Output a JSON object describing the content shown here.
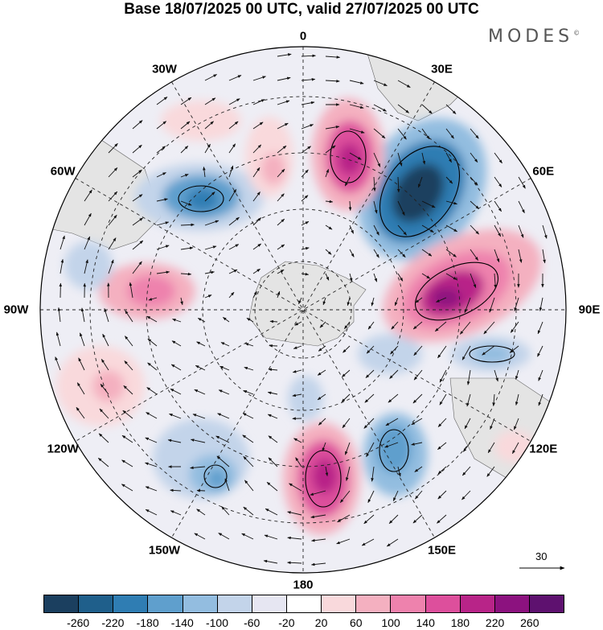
{
  "title": "Base 18/07/2025 00 UTC, valid 27/07/2025 00 UTC",
  "brand": "MODES",
  "brand_mark": "©",
  "longitude_labels": [
    {
      "text": "0",
      "lon": 0
    },
    {
      "text": "30E",
      "lon": 30
    },
    {
      "text": "60E",
      "lon": 60
    },
    {
      "text": "90E",
      "lon": 90
    },
    {
      "text": "120E",
      "lon": 120
    },
    {
      "text": "150E",
      "lon": 150
    },
    {
      "text": "180",
      "lon": 180
    },
    {
      "text": "150W",
      "lon": -150
    },
    {
      "text": "120W",
      "lon": -120
    },
    {
      "text": "90W",
      "lon": -90
    },
    {
      "text": "60W",
      "lon": -60
    },
    {
      "text": "30W",
      "lon": -30
    }
  ],
  "reference_vector": {
    "value": "30"
  },
  "colorbar": {
    "colors": [
      "#1b3f5f",
      "#1f5f8b",
      "#2f7db3",
      "#5f9fcd",
      "#93bde0",
      "#c3d4ea",
      "#e6e6f2",
      "#ffffff",
      "#f9d9dc",
      "#f4b0c0",
      "#ee82ad",
      "#dd4f9c",
      "#b82488",
      "#8c127f",
      "#5e116f"
    ],
    "ticks": [
      "-260",
      "-220",
      "-180",
      "-140",
      "-100",
      "-60",
      "-20",
      "20",
      "60",
      "100",
      "140",
      "180",
      "220",
      "260"
    ]
  }
}
